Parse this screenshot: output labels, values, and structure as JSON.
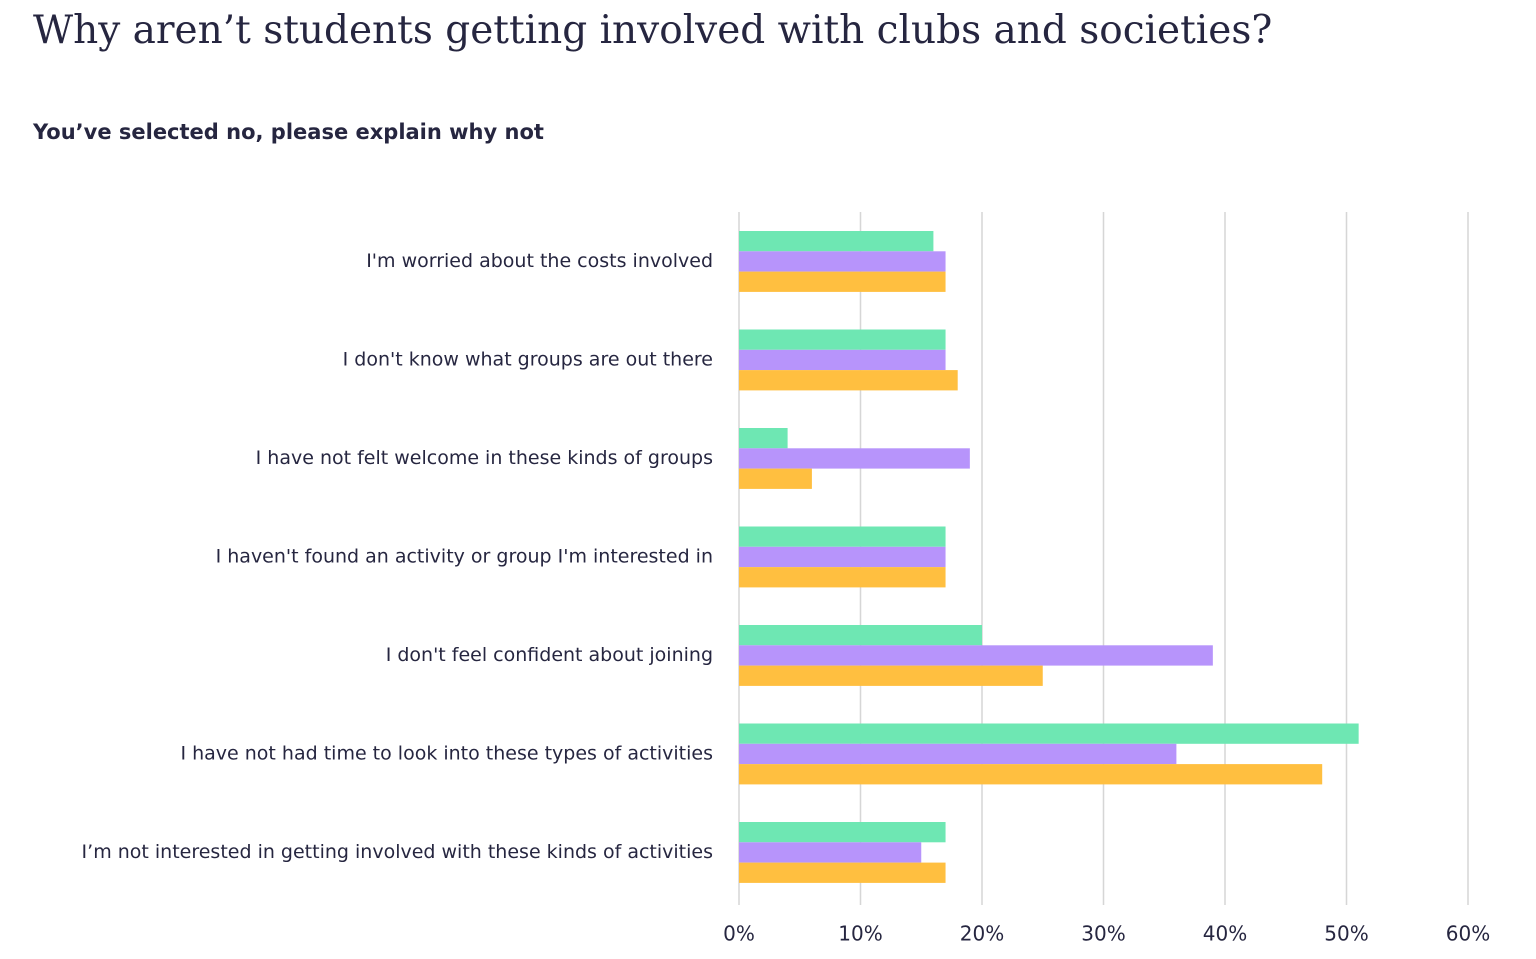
{
  "title": "Why aren’t students getting involved with clubs and societies?",
  "subtitle": "You’ve selected no, please explain why not",
  "chart_data": {
    "type": "bar",
    "orientation": "horizontal",
    "categories": [
      "I'm worried about the costs involved",
      "I don't know what groups are out there",
      "I have not felt welcome in these kinds of groups",
      "I haven't found an activity or group I'm interested in",
      "I don't feel confident about joining",
      "I have not had time to look into these types of activities",
      "I’m not interested in getting involved with these kinds of activities"
    ],
    "series": [
      {
        "color": "#6ee7b3",
        "values": [
          16,
          17,
          4,
          17,
          20,
          51,
          17
        ]
      },
      {
        "color": "#b794fb",
        "values": [
          17,
          17,
          19,
          17,
          39,
          36,
          15
        ]
      },
      {
        "color": "#ffbf40",
        "values": [
          17,
          18,
          6,
          17,
          25,
          48,
          17
        ]
      }
    ],
    "xlim": [
      0,
      60
    ],
    "xticks": [
      "0%",
      "10%",
      "20%",
      "30%",
      "40%",
      "50%",
      "60%"
    ],
    "value_unit": "percent",
    "grid": "vertical",
    "legend": "none"
  }
}
